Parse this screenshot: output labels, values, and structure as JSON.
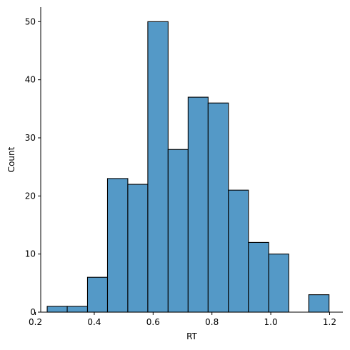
{
  "chart_data": {
    "type": "bar",
    "subtype": "histogram",
    "xlabel": "RT",
    "ylabel": "Count",
    "xlim": [
      0.218,
      1.245
    ],
    "ylim": [
      0,
      52.5
    ],
    "xticks": [
      0.2,
      0.4,
      0.6,
      0.8,
      1.0,
      1.2
    ],
    "xtick_labels": [
      "0.2",
      "0.4",
      "0.6",
      "0.8",
      "1.0",
      "1.2"
    ],
    "yticks": [
      0,
      10,
      20,
      30,
      40,
      50
    ],
    "ytick_labels": [
      "0",
      "10",
      "20",
      "30",
      "40",
      "50"
    ],
    "bin_edges": [
      0.24,
      0.308,
      0.377,
      0.445,
      0.514,
      0.582,
      0.651,
      0.719,
      0.787,
      0.856,
      0.924,
      0.993,
      1.061,
      1.129,
      1.198
    ],
    "counts": [
      1,
      1,
      6,
      23,
      22,
      50,
      28,
      37,
      36,
      21,
      12,
      10,
      0,
      3
    ],
    "bar_color": "#5499c7",
    "edge_color": "#000000",
    "grid": false
  }
}
